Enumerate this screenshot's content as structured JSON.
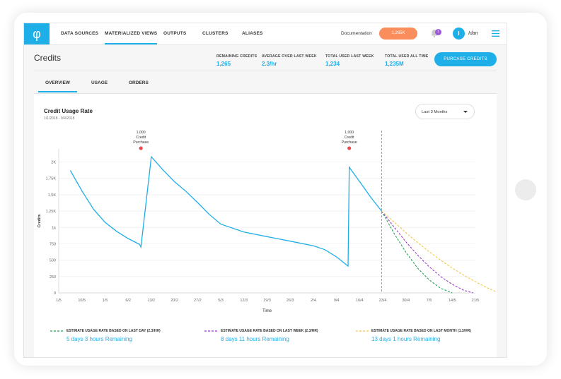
{
  "nav": {
    "items": [
      {
        "label": "DATA SOURCES",
        "active": false
      },
      {
        "label": "MATERIALIZED VIEWS",
        "active": true
      },
      {
        "label": "OUTPUTS",
        "active": false
      },
      {
        "label": "CLUSTERS",
        "active": false
      },
      {
        "label": "ALIASES",
        "active": false
      }
    ],
    "documentation": "Documentation",
    "credits_pill": "1,265K",
    "notification_count": "1",
    "avatar_initial": "I",
    "username": "Idan"
  },
  "page": {
    "title": "Credits",
    "stats": [
      {
        "label": "REMAINING CREDITS",
        "value": "1,265"
      },
      {
        "label": "AVERAGE OVER LAST WEEK",
        "value": "2.3/hr"
      },
      {
        "label": "TOTAL USED LAST WEEK",
        "value": "1,234"
      },
      {
        "label": "TOTAL USED ALL TIME",
        "value": "1,235M"
      }
    ],
    "purchase_button": "PURCASE CREDITS"
  },
  "tabs": [
    {
      "label": "OVERVIEW",
      "active": true
    },
    {
      "label": "USAGE",
      "active": false
    },
    {
      "label": "ORDERS",
      "active": false
    }
  ],
  "card": {
    "title": "Credit Usage Rate",
    "subtitle": "1/1/2018 - 9/4/2018",
    "range_select": "Last 3 Months"
  },
  "colors": {
    "accent": "#1eaee8",
    "orange": "#f98e5c",
    "green": "#27a55a",
    "purple": "#9b37c6",
    "yellow": "#f2c94c",
    "marker": "#e84c4c"
  },
  "chart_data": {
    "type": "line",
    "xlabel": "Time",
    "ylabel": "Credits",
    "ylim": [
      0,
      2200
    ],
    "y_ticks": [
      0,
      250,
      500,
      750,
      "1k",
      "1.25K",
      "1.5K",
      "1.75K",
      "2K"
    ],
    "y_tick_values": [
      0,
      250,
      500,
      750,
      1000,
      1250,
      1500,
      1750,
      2000
    ],
    "x_ticks": [
      "1/5",
      "10/5",
      "1/5",
      "6/2",
      "13/2",
      "20/2",
      "27/2",
      "5/3",
      "12/3",
      "19/3",
      "26/3",
      "2/4",
      "9/4",
      "16/4",
      "23/4",
      "30/4",
      "7/5",
      "14/5",
      "21/5"
    ],
    "series": [
      {
        "role": "actual",
        "x_index": [
          0.5,
          1.0,
          1.5,
          2.0,
          2.5,
          3.0,
          3.5,
          3.55,
          4.0,
          4.5,
          5.0,
          5.5,
          6.0,
          6.5,
          7.0,
          8.0,
          9.0,
          10.0,
          11.0,
          11.5,
          12.0,
          12.5,
          12.55,
          13.0,
          13.5,
          13.95
        ],
        "y": [
          1870,
          1560,
          1280,
          1080,
          940,
          830,
          740,
          700,
          2080,
          1880,
          1700,
          1550,
          1380,
          1200,
          1050,
          930,
          860,
          790,
          720,
          660,
          550,
          410,
          1920,
          1700,
          1450,
          1250
        ]
      },
      {
        "name": "ESTIMATE USAGE RATE BASED ON LAST DAY (2.3/HR)",
        "remaining": "5 days 3 hours Remaining",
        "x_index": [
          13.95,
          14.5,
          15.0,
          15.5,
          16.0,
          16.5,
          17.0
        ],
        "y": [
          1250,
          900,
          620,
          380,
          200,
          70,
          0
        ]
      },
      {
        "name": "ESTIMATE USAGE RATE BASED ON LAST WEEK (2.3/HR)",
        "remaining": "8 days 11 hours Remaining",
        "x_index": [
          13.95,
          14.5,
          15.0,
          15.5,
          16.0,
          16.5,
          17.0,
          17.5,
          17.9
        ],
        "y": [
          1250,
          1000,
          780,
          580,
          400,
          250,
          130,
          40,
          0
        ]
      },
      {
        "name": "ESTIMATE USAGE RATE BASED ON LAST MONTH (1.3/HR)",
        "remaining": "13 days 1 hours Remaining",
        "x_index": [
          13.95,
          14.5,
          15.0,
          15.5,
          16.0,
          16.5,
          17.0,
          17.5,
          18.0,
          18.5,
          19.0
        ],
        "y": [
          1250,
          1080,
          920,
          770,
          630,
          500,
          380,
          270,
          170,
          80,
          0
        ]
      }
    ],
    "annotations": [
      {
        "x_index": 3.55,
        "lines": [
          "1,000",
          "Credit",
          "Purchase"
        ]
      },
      {
        "x_index": 12.55,
        "lines": [
          "1,000",
          "Credit",
          "Purchase"
        ]
      }
    ],
    "today_marker_x_index": 13.95
  }
}
